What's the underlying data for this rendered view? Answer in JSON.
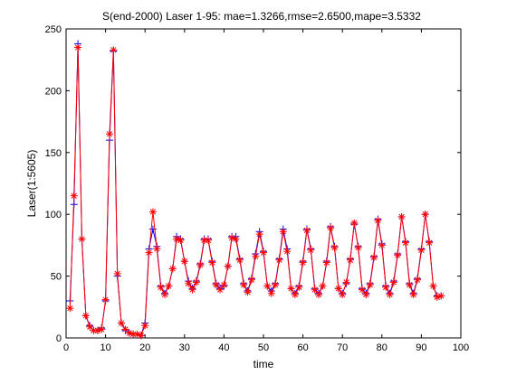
{
  "chart_data": {
    "type": "line",
    "title": "S(end-2000) Laser 1-95: mae=1.3266,rmse=2.6500,mape=3.5332",
    "xlabel": "time",
    "ylabel": "Laser(1:5605)",
    "xlim": [
      0,
      100
    ],
    "ylim": [
      0,
      250
    ],
    "x_ticks": [
      "0",
      "10",
      "20",
      "30",
      "40",
      "50",
      "60",
      "70",
      "80",
      "90",
      "100"
    ],
    "y_ticks": [
      "0",
      "50",
      "100",
      "150",
      "200",
      "250"
    ],
    "grid": false,
    "legend": "none",
    "x": [
      1,
      2,
      3,
      4,
      5,
      6,
      7,
      8,
      9,
      10,
      11,
      12,
      13,
      14,
      15,
      16,
      17,
      18,
      19,
      20,
      21,
      22,
      23,
      24,
      25,
      26,
      27,
      28,
      29,
      30,
      31,
      32,
      33,
      34,
      35,
      36,
      37,
      38,
      39,
      40,
      41,
      42,
      43,
      44,
      45,
      46,
      47,
      48,
      49,
      50,
      51,
      52,
      53,
      54,
      55,
      56,
      57,
      58,
      59,
      60,
      61,
      62,
      63,
      64,
      65,
      66,
      67,
      68,
      69,
      70,
      71,
      72,
      73,
      74,
      75,
      76,
      77,
      78,
      79,
      80,
      81,
      82,
      83,
      84,
      85,
      86,
      87,
      88,
      89,
      90,
      91,
      92,
      93,
      94,
      95
    ],
    "series": [
      {
        "name": "",
        "color": "#0000ff",
        "marker": "plus",
        "values": [
          30,
          108,
          238,
          80,
          18,
          10,
          6,
          6,
          8,
          30,
          160,
          232,
          50,
          12,
          6,
          4,
          3,
          3,
          2,
          12,
          72,
          88,
          74,
          42,
          36,
          42,
          56,
          82,
          80,
          62,
          46,
          40,
          46,
          60,
          80,
          80,
          62,
          44,
          40,
          42,
          58,
          82,
          82,
          64,
          44,
          38,
          48,
          68,
          86,
          70,
          42,
          38,
          44,
          64,
          88,
          72,
          40,
          36,
          42,
          62,
          88,
          72,
          40,
          36,
          42,
          62,
          90,
          74,
          40,
          36,
          44,
          64,
          92,
          74,
          40,
          36,
          44,
          66,
          96,
          76,
          42,
          36,
          46,
          68,
          98,
          78,
          44,
          36,
          48,
          72,
          100,
          78,
          42,
          34,
          34
        ]
      },
      {
        "name": "",
        "color": "#ff0000",
        "marker": "star",
        "values": [
          24,
          115,
          235,
          80,
          18,
          9,
          6,
          6,
          7,
          31,
          165,
          233,
          52,
          12,
          7,
          4,
          3,
          3,
          2,
          10,
          69,
          102,
          72,
          41,
          35,
          42,
          56,
          80,
          79,
          62,
          44,
          39,
          45,
          59,
          79,
          79,
          61,
          43,
          39,
          43,
          58,
          81,
          80,
          63,
          43,
          37,
          47,
          66,
          84,
          69,
          42,
          36,
          43,
          63,
          86,
          70,
          40,
          35,
          41,
          61,
          87,
          71,
          39,
          35,
          42,
          61,
          89,
          73,
          40,
          35,
          45,
          63,
          93,
          73,
          39,
          35,
          43,
          65,
          95,
          75,
          41,
          35,
          45,
          67,
          98,
          77,
          43,
          35,
          47,
          71,
          100,
          77,
          42,
          33,
          34
        ]
      }
    ]
  }
}
